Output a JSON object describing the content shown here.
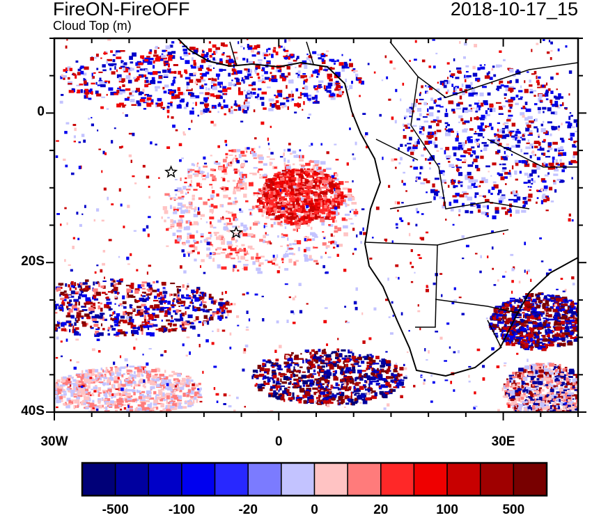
{
  "title": "FireON-FireOFF",
  "subtitle": "Cloud Top (m)",
  "date": "2018-10-17_15",
  "chart_data": {
    "type": "heatmap",
    "title": "FireON-FireOFF",
    "subtitle": "Cloud Top (m)",
    "xlim": [
      -30,
      40
    ],
    "ylim": [
      -40,
      10
    ],
    "x_ticks": [
      {
        "v": -30,
        "label": "30W"
      },
      {
        "v": 0,
        "label": "0"
      },
      {
        "v": 30,
        "label": "30E"
      }
    ],
    "y_ticks": [
      {
        "v": 0,
        "label": "0"
      },
      {
        "v": -20,
        "label": "20S"
      },
      {
        "v": -40,
        "label": "40S"
      }
    ],
    "colorbar": {
      "colors": [
        "#000078",
        "#00009f",
        "#0000c8",
        "#0000ef",
        "#2828ff",
        "#7b7bff",
        "#c3c3ff",
        "#ffc3c3",
        "#ff7b7b",
        "#ff2828",
        "#ef0000",
        "#c80000",
        "#9f0000",
        "#780000"
      ],
      "labels": [
        {
          "index": 1,
          "label": "-500"
        },
        {
          "index": 3,
          "label": "-100"
        },
        {
          "index": 5,
          "label": "-20"
        },
        {
          "index": 7,
          "label": "0"
        },
        {
          "index": 9,
          "label": "20"
        },
        {
          "index": 11,
          "label": "100"
        },
        {
          "index": 13,
          "label": "500"
        }
      ]
    },
    "markers": [
      {
        "lon": -14.4,
        "lat": -7.9,
        "symbol": "star"
      },
      {
        "lon": -5.7,
        "lat": -16.0,
        "symbol": "star"
      }
    ]
  }
}
